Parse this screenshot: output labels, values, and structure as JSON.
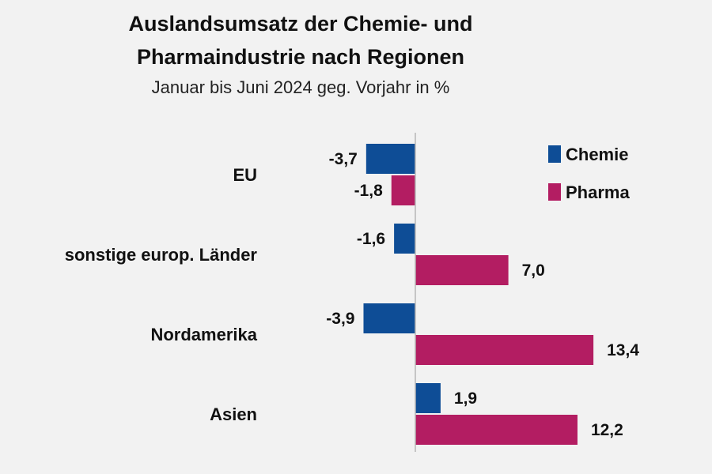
{
  "chart_data": {
    "type": "bar",
    "orientation": "horizontal",
    "title_line1": "Auslandsumsatz der Chemie- und",
    "title_line2": "Pharmaindustrie nach Regionen",
    "subtitle": "Januar bis Juni 2024 geg. Vorjahr in %",
    "categories": [
      "EU",
      "sonstige europ. Länder",
      "Nordamerika",
      "Asien"
    ],
    "series": [
      {
        "name": "Chemie",
        "color": "#0e4d96",
        "values": [
          -3.7,
          -1.6,
          -3.9,
          1.9
        ],
        "labels": [
          "-3,7",
          "-1,6",
          "-3,9",
          "1,9"
        ]
      },
      {
        "name": "Pharma",
        "color": "#b31d62",
        "values": [
          -1.8,
          7.0,
          13.4,
          12.2
        ],
        "labels": [
          "-1,8",
          "7,0",
          "13,4",
          "12,2"
        ]
      }
    ],
    "xlim": [
      -4.0,
      14.0
    ],
    "grid": false,
    "legend_position": "top-right",
    "axis_line_color": "#b8b8b8"
  }
}
